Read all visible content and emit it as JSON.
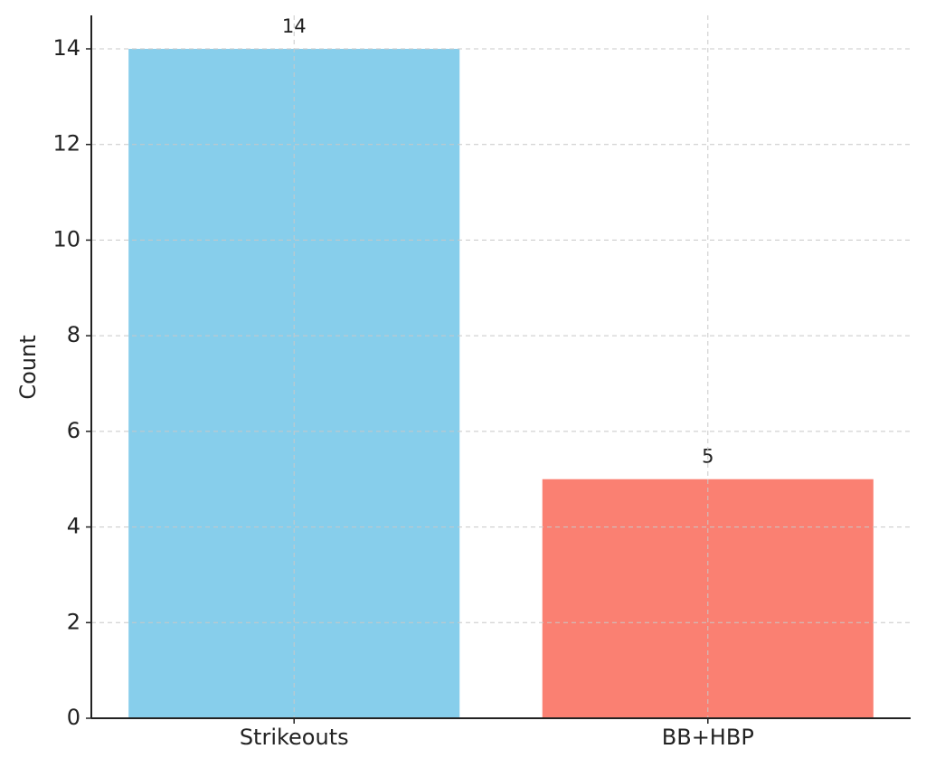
{
  "chart_data": {
    "type": "bar",
    "ylabel": "Count",
    "categories": [
      "Strikeouts",
      "BB+HBP"
    ],
    "values": [
      14,
      5
    ],
    "colors": [
      "#87ceeb",
      "#fa8072"
    ],
    "ylim": [
      0,
      14.7
    ],
    "yticks": [
      0,
      2,
      4,
      6,
      8,
      10,
      12,
      14
    ],
    "grid": true
  }
}
